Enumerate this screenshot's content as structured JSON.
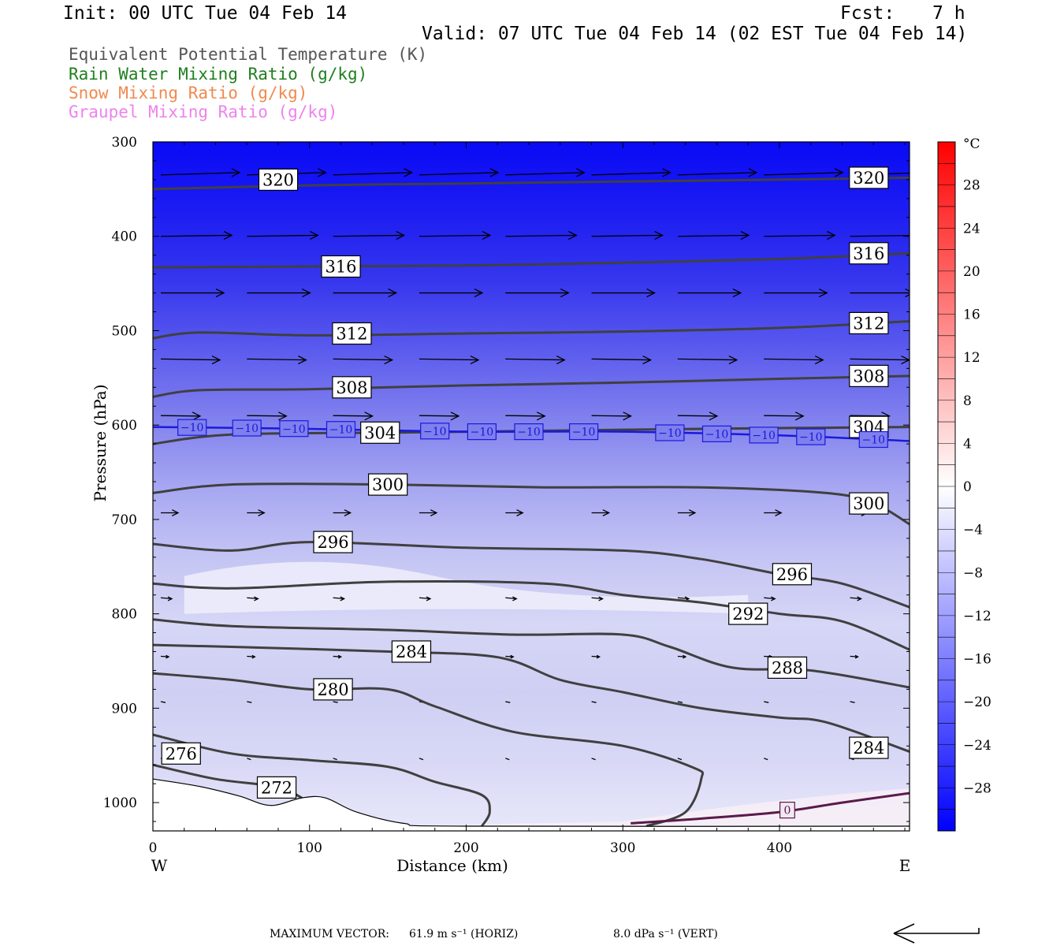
{
  "header": {
    "init": "Init: 00 UTC Tue 04 Feb 14",
    "fcst_label": "Fcst:",
    "fcst_value": "7 h",
    "valid": "Valid: 07 UTC Tue 04 Feb 14 (02 EST Tue 04 Feb 14)"
  },
  "fields": [
    {
      "label": "Equivalent Potential Temperature (K)",
      "color": "#555555"
    },
    {
      "label": "Rain Water Mixing Ratio (g/kg)",
      "color": "#1f7f1f"
    },
    {
      "label": "Snow Mixing Ratio (g/kg)",
      "color": "#f08a50"
    },
    {
      "label": "Graupel Mixing Ratio (g/kg)",
      "color": "#ee82ee"
    }
  ],
  "chart_data": {
    "type": "cross-section contour",
    "xlabel": "Distance (km)",
    "ylabel": "Pressure (hPa)",
    "xlim": [
      0,
      483
    ],
    "ylim": [
      1030,
      300
    ],
    "x_ticks": [
      0,
      100,
      200,
      300,
      400
    ],
    "y_ticks": [
      300,
      400,
      500,
      600,
      700,
      800,
      900,
      1000
    ],
    "x_left_label": "W",
    "x_right_label": "E",
    "theta_e_contours": [
      {
        "value": 320,
        "label": "320",
        "points": [
          [
            0,
            350
          ],
          [
            100,
            346
          ],
          [
            200,
            344
          ],
          [
            300,
            342
          ],
          [
            400,
            340
          ],
          [
            483,
            338
          ]
        ]
      },
      {
        "value": 316,
        "label": "316",
        "points": [
          [
            0,
            433
          ],
          [
            100,
            432
          ],
          [
            200,
            431
          ],
          [
            300,
            428
          ],
          [
            400,
            424
          ],
          [
            483,
            418
          ]
        ]
      },
      {
        "value": 312,
        "label": "312",
        "points": [
          [
            0,
            508
          ],
          [
            30,
            502
          ],
          [
            100,
            505
          ],
          [
            200,
            503
          ],
          [
            300,
            501
          ],
          [
            400,
            497
          ],
          [
            483,
            490
          ]
        ]
      },
      {
        "value": 308,
        "label": "308",
        "points": [
          [
            0,
            570
          ],
          [
            30,
            563
          ],
          [
            100,
            562
          ],
          [
            200,
            558
          ],
          [
            300,
            555
          ],
          [
            400,
            551
          ],
          [
            483,
            548
          ]
        ]
      },
      {
        "value": 304,
        "label": "304",
        "points": [
          [
            0,
            620
          ],
          [
            50,
            610
          ],
          [
            150,
            608
          ],
          [
            250,
            606
          ],
          [
            350,
            604
          ],
          [
            483,
            602
          ]
        ]
      },
      {
        "value": 300,
        "label": "300",
        "points": [
          [
            0,
            672
          ],
          [
            50,
            663
          ],
          [
            150,
            663
          ],
          [
            250,
            666
          ],
          [
            350,
            666
          ],
          [
            430,
            672
          ],
          [
            460,
            683
          ],
          [
            483,
            705
          ]
        ]
      },
      {
        "value": 296,
        "label": "296",
        "points": [
          [
            0,
            726
          ],
          [
            50,
            733
          ],
          [
            100,
            724
          ],
          [
            200,
            730
          ],
          [
            300,
            733
          ],
          [
            350,
            742
          ],
          [
            400,
            758
          ],
          [
            440,
            768
          ],
          [
            483,
            793
          ]
        ]
      },
      {
        "value": 292,
        "label": "292",
        "points": [
          [
            0,
            768
          ],
          [
            50,
            773
          ],
          [
            150,
            766
          ],
          [
            250,
            768
          ],
          [
            300,
            780
          ],
          [
            350,
            788
          ],
          [
            400,
            800
          ],
          [
            440,
            808
          ],
          [
            483,
            838
          ]
        ]
      },
      {
        "value": 288,
        "label": "288",
        "points": [
          [
            0,
            806
          ],
          [
            50,
            813
          ],
          [
            150,
            817
          ],
          [
            230,
            822
          ],
          [
            300,
            822
          ],
          [
            330,
            835
          ],
          [
            370,
            857
          ],
          [
            420,
            860
          ],
          [
            483,
            878
          ]
        ]
      },
      {
        "value": 284,
        "label": "284",
        "points": [
          [
            0,
            833
          ],
          [
            50,
            835
          ],
          [
            150,
            840
          ],
          [
            220,
            846
          ],
          [
            260,
            870
          ],
          [
            300,
            883
          ],
          [
            350,
            900
          ],
          [
            400,
            910
          ],
          [
            430,
            915
          ],
          [
            483,
            946
          ]
        ]
      },
      {
        "value": 280,
        "label": "280",
        "points": [
          [
            0,
            863
          ],
          [
            50,
            870
          ],
          [
            100,
            880
          ],
          [
            150,
            880
          ],
          [
            180,
            898
          ],
          [
            230,
            925
          ],
          [
            300,
            940
          ],
          [
            345,
            963
          ],
          [
            350,
            975
          ],
          [
            340,
            1010
          ],
          [
            315,
            1025
          ]
        ]
      },
      {
        "value": 276,
        "label": "276",
        "points": [
          [
            0,
            928
          ],
          [
            50,
            948
          ],
          [
            100,
            955
          ],
          [
            150,
            962
          ],
          [
            180,
            978
          ],
          [
            210,
            992
          ],
          [
            215,
            1010
          ],
          [
            210,
            1025
          ]
        ]
      },
      {
        "value": 272,
        "label": "272",
        "points": [
          [
            0,
            960
          ],
          [
            40,
            975
          ],
          [
            80,
            984
          ],
          [
            100,
            1000
          ]
        ]
      }
    ],
    "temperature_isotherms": [
      {
        "value": -10,
        "label": "−10",
        "points": [
          [
            0,
            602
          ],
          [
            100,
            604
          ],
          [
            200,
            607
          ],
          [
            300,
            607
          ],
          [
            400,
            611
          ],
          [
            483,
            617
          ]
        ]
      },
      {
        "value": 0,
        "label": "0",
        "points": [
          [
            305,
            1022
          ],
          [
            350,
            1017
          ],
          [
            400,
            1010
          ],
          [
            440,
            1000
          ],
          [
            483,
            990
          ]
        ]
      }
    ],
    "colorbar": {
      "unit": "°C",
      "tick_labels": [
        "28",
        "24",
        "20",
        "16",
        "12",
        "8",
        "4",
        "0",
        "−4",
        "−8",
        "−12",
        "−16",
        "−20",
        "−24",
        "−28"
      ],
      "tick_values": [
        28,
        24,
        20,
        16,
        12,
        8,
        4,
        0,
        -4,
        -8,
        -12,
        -16,
        -20,
        -24,
        -28
      ],
      "range": [
        -32,
        32
      ],
      "cold_color": "#0000ff",
      "neutral_color": "#ffffff",
      "warm_color": "#ff0000"
    },
    "vector_note": {
      "max_label": "MAXIMUM VECTOR:",
      "horiz_value": "61.9 m s⁻¹ (HORIZ)",
      "vert_value": "8.0 dPa s⁻¹ (VERT)"
    }
  }
}
